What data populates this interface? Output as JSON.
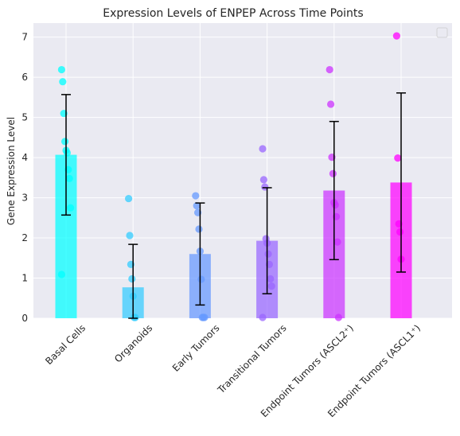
{
  "chart_data": {
    "type": "bar",
    "title": "Expression Levels of ENPEP Across Time Points",
    "xlabel": "",
    "ylabel": "Gene Expression Level",
    "ylim": [
      0,
      7.35
    ],
    "yticks": [
      0,
      1,
      2,
      3,
      4,
      5,
      6,
      7
    ],
    "grid": true,
    "legend": "top-right",
    "categories": [
      "Basal Cells",
      "Organoids",
      "Early Tumors",
      "Transitional Tumors",
      "Endpoint Tumors (ASCL2⁺)",
      "Endpoint Tumors (ASCL1⁺)"
    ],
    "values": [
      4.07,
      0.77,
      1.6,
      1.93,
      3.18,
      3.38
    ],
    "errors": [
      1.5,
      1.07,
      1.27,
      1.32,
      1.72,
      2.23
    ],
    "colors": [
      "#00ffff",
      "#33ccff",
      "#6699ff",
      "#9966ff",
      "#cc33ff",
      "#ff00ff"
    ],
    "points": [
      [
        6.19,
        5.89,
        5.1,
        4.4,
        4.18,
        4.12,
        3.7,
        3.48,
        2.75,
        1.09
      ],
      [
        2.98,
        2.06,
        1.34,
        0.98,
        0.55,
        0.02,
        0.02
      ],
      [
        3.05,
        2.8,
        2.63,
        2.22,
        1.67,
        0.97,
        0.02,
        0.02,
        0.02
      ],
      [
        4.22,
        3.45,
        3.27,
        1.98,
        1.87,
        1.6,
        1.34,
        0.98,
        0.8,
        0.02
      ],
      [
        6.19,
        5.33,
        4.01,
        3.6,
        2.88,
        2.82,
        2.53,
        1.9,
        0.02
      ],
      [
        7.03,
        3.99,
        2.35,
        2.15,
        1.47
      ]
    ]
  }
}
